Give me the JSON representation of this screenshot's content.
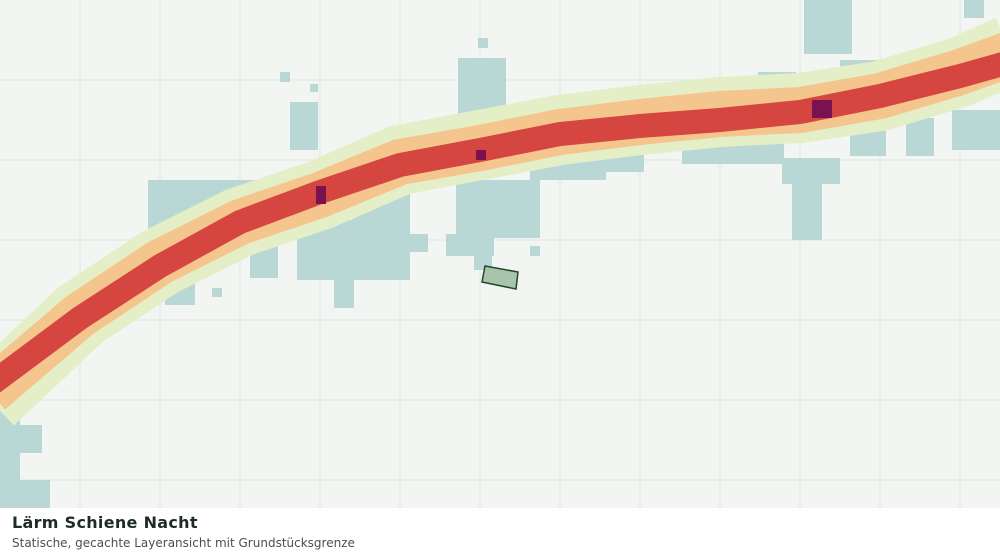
{
  "header": {
    "title": "Lärm Schiene Nacht",
    "subtitle": "Statische, gecachte Layeransicht mit Grundstücksgrenze"
  }
}
